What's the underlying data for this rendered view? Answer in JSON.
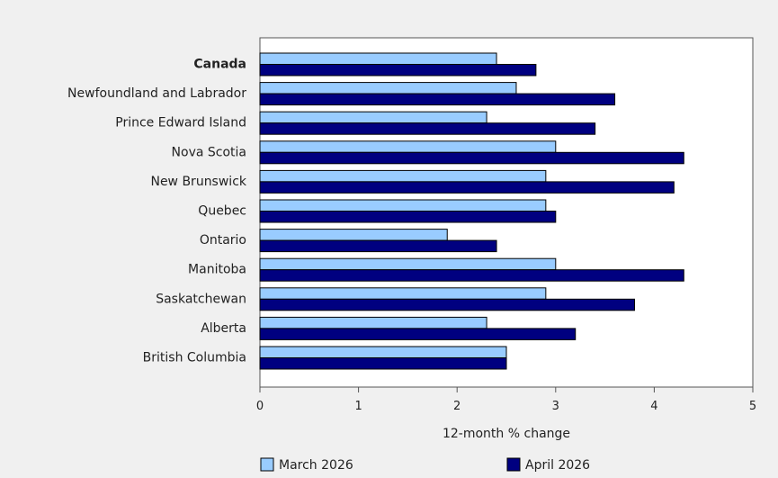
{
  "chart_data": {
    "type": "bar",
    "orientation": "horizontal",
    "categories": [
      "Canada",
      "Newfoundland and Labrador",
      "Prince Edward Island",
      "Nova Scotia",
      "New Brunswick",
      "Quebec",
      "Ontario",
      "Manitoba",
      "Saskatchewan",
      "Alberta",
      "British Columbia"
    ],
    "bold_categories": [
      "Canada"
    ],
    "series": [
      {
        "name": "March 2026",
        "color": "#99ccff",
        "values": [
          2.4,
          2.6,
          2.3,
          3.0,
          2.9,
          2.9,
          1.9,
          3.0,
          2.9,
          2.3,
          2.5
        ]
      },
      {
        "name": "April 2026",
        "color": "#000080",
        "values": [
          2.8,
          3.6,
          3.4,
          4.3,
          4.2,
          3.0,
          2.4,
          4.3,
          3.8,
          3.2,
          2.5
        ]
      }
    ],
    "xlabel": "12-month % change",
    "xlim": [
      0,
      5
    ],
    "xticks": [
      0,
      1,
      2,
      3,
      4,
      5
    ],
    "grid": false,
    "legend": "bottom"
  }
}
